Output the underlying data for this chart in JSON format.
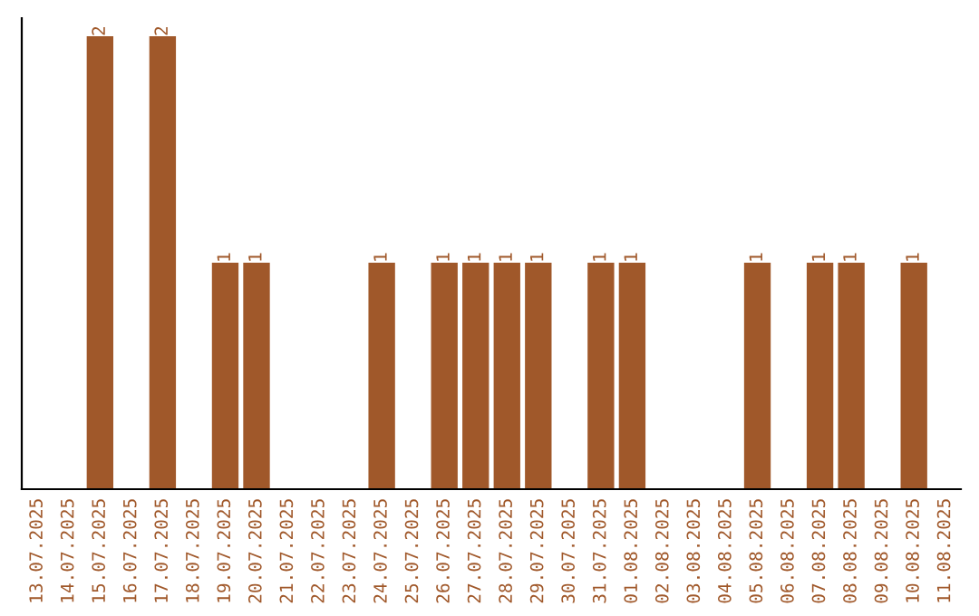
{
  "chart_data": {
    "type": "bar",
    "categories": [
      "13.07.2025",
      "14.07.2025",
      "15.07.2025",
      "16.07.2025",
      "17.07.2025",
      "18.07.2025",
      "19.07.2025",
      "20.07.2025",
      "21.07.2025",
      "22.07.2025",
      "23.07.2025",
      "24.07.2025",
      "25.07.2025",
      "26.07.2025",
      "27.07.2025",
      "28.07.2025",
      "29.07.2025",
      "30.07.2025",
      "31.07.2025",
      "01.08.2025",
      "02.08.2025",
      "03.08.2025",
      "04.08.2025",
      "05.08.2025",
      "06.08.2025",
      "07.08.2025",
      "08.08.2025",
      "09.08.2025",
      "10.08.2025",
      "11.08.2025"
    ],
    "values": [
      0,
      0,
      2,
      0,
      2,
      0,
      1,
      1,
      0,
      0,
      0,
      1,
      0,
      1,
      1,
      1,
      1,
      0,
      1,
      1,
      0,
      0,
      0,
      1,
      0,
      1,
      1,
      0,
      1,
      0
    ],
    "value_labels": [
      null,
      null,
      "2",
      null,
      "2",
      null,
      "1",
      "1",
      null,
      null,
      null,
      "1",
      null,
      "1",
      "1",
      "1",
      "1",
      null,
      "1",
      "1",
      null,
      null,
      null,
      "1",
      null,
      "1",
      "1",
      null,
      "1",
      null
    ],
    "color": "#a0582a",
    "grid": false,
    "legend": false,
    "tick_labels": "x"
  }
}
